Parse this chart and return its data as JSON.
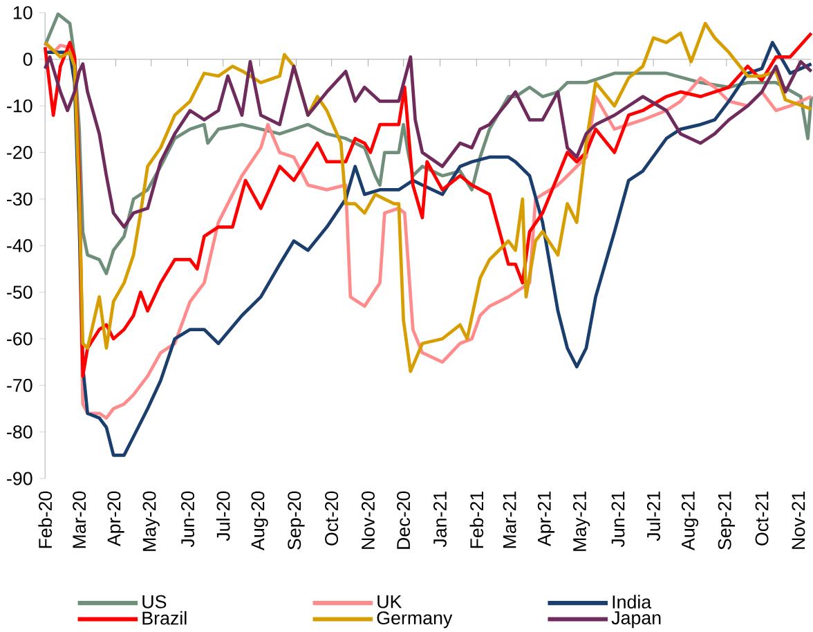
{
  "chart_data": {
    "type": "line",
    "legend": "bottom",
    "line_style": "solid",
    "xlim": [
      "2020-02-01",
      "2021-11-12"
    ],
    "ylim": [
      -90,
      10
    ],
    "yticks": [
      -90,
      -80,
      -70,
      -60,
      -50,
      -40,
      -30,
      -20,
      -10,
      0,
      10
    ],
    "xticks": [
      {
        "value": "2020-02-01",
        "label": "Feb-20"
      },
      {
        "value": "2020-03-01",
        "label": "Mar-20"
      },
      {
        "value": "2020-04-01",
        "label": "Apr-20"
      },
      {
        "value": "2020-05-01",
        "label": "May-20"
      },
      {
        "value": "2020-06-01",
        "label": "Jun-20"
      },
      {
        "value": "2020-07-01",
        "label": "Jul-20"
      },
      {
        "value": "2020-08-01",
        "label": "Aug-20"
      },
      {
        "value": "2020-09-01",
        "label": "Sep-20"
      },
      {
        "value": "2020-10-01",
        "label": "Oct-20"
      },
      {
        "value": "2020-11-01",
        "label": "Nov-20"
      },
      {
        "value": "2020-12-01",
        "label": "Dec-20"
      },
      {
        "value": "2021-01-01",
        "label": "Jan-21"
      },
      {
        "value": "2021-02-01",
        "label": "Feb-21"
      },
      {
        "value": "2021-03-01",
        "label": "Mar-21"
      },
      {
        "value": "2021-04-01",
        "label": "Apr-21"
      },
      {
        "value": "2021-05-01",
        "label": "May-21"
      },
      {
        "value": "2021-06-01",
        "label": "Jun-21"
      },
      {
        "value": "2021-07-01",
        "label": "Jul-21"
      },
      {
        "value": "2021-08-01",
        "label": "Aug-21"
      },
      {
        "value": "2021-09-01",
        "label": "Sep-21"
      },
      {
        "value": "2021-10-01",
        "label": "Oct-21"
      },
      {
        "value": "2021-11-01",
        "label": "Nov-21"
      }
    ],
    "series": [
      {
        "name": "US",
        "color": "#6f8f7b",
        "x": [
          "2020-02-01",
          "2020-02-12",
          "2020-02-22",
          "2020-02-26",
          "2020-03-01",
          "2020-03-04",
          "2020-03-08",
          "2020-03-18",
          "2020-03-24",
          "2020-03-30",
          "2020-04-08",
          "2020-04-16",
          "2020-04-28",
          "2020-05-09",
          "2020-05-21",
          "2020-06-03",
          "2020-06-15",
          "2020-06-18",
          "2020-06-27",
          "2020-07-17",
          "2020-08-02",
          "2020-08-18",
          "2020-09-11",
          "2020-09-27",
          "2020-10-13",
          "2020-10-29",
          "2020-11-07",
          "2020-11-11",
          "2020-11-15",
          "2020-11-27",
          "2020-12-01",
          "2020-12-05",
          "2020-12-09",
          "2020-12-17",
          "2021-01-03",
          "2021-01-18",
          "2021-01-28",
          "2021-02-04",
          "2021-02-12",
          "2021-02-28",
          "2021-03-06",
          "2021-03-18",
          "2021-03-29",
          "2021-04-11",
          "2021-04-19",
          "2021-05-05",
          "2021-05-29",
          "2021-06-22",
          "2021-07-12",
          "2021-08-10",
          "2021-09-03",
          "2021-09-19",
          "2021-10-13",
          "2021-11-03",
          "2021-11-09",
          "2021-11-12"
        ],
        "values": [
          3,
          9.7,
          7.7,
          0.5,
          -15,
          -37,
          -42,
          -43,
          -46,
          -41,
          -38,
          -30,
          -28,
          -23,
          -17,
          -15,
          -14,
          -18,
          -15,
          -14,
          -15,
          -16,
          -14,
          -16,
          -17,
          -19,
          -25,
          -27,
          -20,
          -20,
          -14,
          -20,
          -25,
          -23,
          -25,
          -24,
          -28,
          -21,
          -15,
          -8,
          -8,
          -6,
          -8,
          -7,
          -5,
          -5,
          -3,
          -3,
          -3,
          -5,
          -6,
          -5,
          -5,
          -8,
          -17,
          -8
        ]
      },
      {
        "name": "UK",
        "color": "#ff8c8c",
        "x": [
          "2020-02-01",
          "2020-02-08",
          "2020-02-14",
          "2020-02-22",
          "2020-02-26",
          "2020-03-01",
          "2020-03-04",
          "2020-03-08",
          "2020-03-18",
          "2020-03-24",
          "2020-03-30",
          "2020-04-08",
          "2020-04-16",
          "2020-04-28",
          "2020-05-09",
          "2020-05-21",
          "2020-06-03",
          "2020-06-15",
          "2020-06-27",
          "2020-07-17",
          "2020-08-02",
          "2020-08-08",
          "2020-08-18",
          "2020-08-30",
          "2020-09-11",
          "2020-09-27",
          "2020-10-13",
          "2020-10-17",
          "2020-10-29",
          "2020-11-11",
          "2020-11-15",
          "2020-11-27",
          "2020-12-02",
          "2020-12-09",
          "2020-12-17",
          "2021-01-03",
          "2021-01-18",
          "2021-01-28",
          "2021-02-04",
          "2021-02-12",
          "2021-02-28",
          "2021-03-06",
          "2021-03-18",
          "2021-03-23",
          "2021-03-29",
          "2021-04-11",
          "2021-04-19",
          "2021-04-27",
          "2021-05-05",
          "2021-05-13",
          "2021-05-29",
          "2021-06-10",
          "2021-06-22",
          "2021-07-12",
          "2021-07-24",
          "2021-08-10",
          "2021-08-22",
          "2021-09-03",
          "2021-09-19",
          "2021-10-01",
          "2021-10-13",
          "2021-10-25",
          "2021-11-12"
        ],
        "values": [
          3.6,
          1.5,
          3,
          2.5,
          -1.5,
          -35,
          -74,
          -76,
          -76,
          -77,
          -75,
          -74,
          -72,
          -68,
          -63,
          -61,
          -52,
          -48,
          -35,
          -25,
          -19,
          -14,
          -20,
          -21,
          -27,
          -28,
          -27,
          -51,
          -53,
          -48,
          -33,
          -32,
          -33,
          -58,
          -63,
          -65,
          -61,
          -60,
          -55,
          -53,
          -51,
          -50,
          -48,
          -30,
          -29,
          -27,
          -25,
          -23,
          -21,
          -8,
          -15,
          -14,
          -13,
          -11,
          -9,
          -4,
          -6,
          -9,
          -10,
          -7,
          -11,
          -10,
          -8
        ]
      },
      {
        "name": "India",
        "color": "#1a3e6e",
        "x": [
          "2020-02-01",
          "2020-02-14",
          "2020-02-22",
          "2020-02-26",
          "2020-03-01",
          "2020-03-04",
          "2020-03-08",
          "2020-03-18",
          "2020-03-24",
          "2020-03-30",
          "2020-04-08",
          "2020-04-16",
          "2020-04-28",
          "2020-05-09",
          "2020-05-21",
          "2020-06-03",
          "2020-06-15",
          "2020-06-27",
          "2020-07-17",
          "2020-08-02",
          "2020-08-18",
          "2020-08-30",
          "2020-09-11",
          "2020-09-27",
          "2020-10-13",
          "2020-10-21",
          "2020-10-29",
          "2020-11-11",
          "2020-11-27",
          "2020-12-09",
          "2020-12-17",
          "2021-01-03",
          "2021-01-18",
          "2021-01-28",
          "2021-02-12",
          "2021-02-28",
          "2021-03-06",
          "2021-03-18",
          "2021-03-29",
          "2021-04-11",
          "2021-04-19",
          "2021-04-27",
          "2021-05-05",
          "2021-05-13",
          "2021-05-29",
          "2021-06-10",
          "2021-06-22",
          "2021-07-12",
          "2021-07-24",
          "2021-08-10",
          "2021-08-22",
          "2021-09-03",
          "2021-09-19",
          "2021-10-01",
          "2021-10-10",
          "2021-10-25",
          "2021-11-12"
        ],
        "values": [
          1.5,
          1.5,
          1.5,
          -5,
          -35,
          -66,
          -76,
          -77,
          -79,
          -85,
          -85,
          -81,
          -75,
          -69,
          -60,
          -58,
          -58,
          -61,
          -55,
          -51,
          -44,
          -39,
          -41,
          -36,
          -30,
          -23,
          -29,
          -28,
          -28,
          -26,
          -27,
          -29,
          -23,
          -22,
          -21,
          -21,
          -22,
          -25,
          -35,
          -54,
          -62,
          -66,
          -62,
          -51,
          -37,
          -26,
          -24,
          -17,
          -15,
          -14,
          -13,
          -9,
          -3,
          -2,
          3.6,
          -3,
          -1
        ]
      },
      {
        "name": "Brazil",
        "color": "#ff0000",
        "x": [
          "2020-02-01",
          "2020-02-08",
          "2020-02-14",
          "2020-02-22",
          "2020-02-26",
          "2020-03-01",
          "2020-03-04",
          "2020-03-08",
          "2020-03-18",
          "2020-03-24",
          "2020-03-30",
          "2020-04-08",
          "2020-04-16",
          "2020-04-22",
          "2020-04-28",
          "2020-05-09",
          "2020-05-21",
          "2020-06-03",
          "2020-06-09",
          "2020-06-15",
          "2020-06-27",
          "2020-07-09",
          "2020-07-20",
          "2020-08-02",
          "2020-08-18",
          "2020-08-30",
          "2020-09-19",
          "2020-09-27",
          "2020-10-13",
          "2020-10-21",
          "2020-10-29",
          "2020-11-03",
          "2020-11-11",
          "2020-11-27",
          "2020-12-02",
          "2020-12-09",
          "2020-12-17",
          "2020-12-21",
          "2021-01-03",
          "2021-01-18",
          "2021-01-28",
          "2021-02-12",
          "2021-02-28",
          "2021-03-06",
          "2021-03-12",
          "2021-03-18",
          "2021-03-29",
          "2021-04-11",
          "2021-04-19",
          "2021-04-27",
          "2021-05-05",
          "2021-05-13",
          "2021-05-29",
          "2021-06-10",
          "2021-06-22",
          "2021-07-12",
          "2021-07-24",
          "2021-08-10",
          "2021-08-22",
          "2021-09-03",
          "2021-09-19",
          "2021-10-01",
          "2021-10-13",
          "2021-10-25",
          "2021-11-12"
        ],
        "values": [
          2.6,
          -12,
          -1.5,
          3.6,
          0.5,
          -25,
          -68,
          -62,
          -58,
          -57,
          -60,
          -58,
          -55,
          -50,
          -54,
          -48,
          -43,
          -43,
          -45,
          -38,
          -36,
          -36,
          -26,
          -32,
          -23,
          -26,
          -18,
          -22,
          -22,
          -17,
          -18,
          -20,
          -14,
          -14,
          -6,
          -27,
          -34,
          -22,
          -28,
          -25,
          -27,
          -29,
          -44,
          -44,
          -48,
          -37,
          -33,
          -25,
          -20,
          -22,
          -20,
          -15,
          -20,
          -12,
          -11,
          -8,
          -7,
          -8,
          -7,
          -6,
          -1.5,
          -4.5,
          0.5,
          0.5,
          5.6
        ]
      },
      {
        "name": "Germany",
        "color": "#d69e00",
        "x": [
          "2020-02-01",
          "2020-02-14",
          "2020-02-22",
          "2020-02-26",
          "2020-03-01",
          "2020-03-04",
          "2020-03-08",
          "2020-03-18",
          "2020-03-24",
          "2020-03-30",
          "2020-04-08",
          "2020-04-16",
          "2020-04-22",
          "2020-04-28",
          "2020-05-09",
          "2020-05-21",
          "2020-06-03",
          "2020-06-15",
          "2020-06-27",
          "2020-07-09",
          "2020-07-17",
          "2020-08-02",
          "2020-08-18",
          "2020-08-22",
          "2020-08-30",
          "2020-09-11",
          "2020-09-19",
          "2020-09-27",
          "2020-10-09",
          "2020-10-13",
          "2020-10-21",
          "2020-10-29",
          "2020-11-07",
          "2020-11-23",
          "2020-11-27",
          "2020-12-01",
          "2020-12-07",
          "2020-12-17",
          "2021-01-03",
          "2021-01-18",
          "2021-01-24",
          "2021-02-04",
          "2021-02-12",
          "2021-02-28",
          "2021-03-06",
          "2021-03-12",
          "2021-03-15",
          "2021-03-23",
          "2021-03-29",
          "2021-04-11",
          "2021-04-19",
          "2021-04-27",
          "2021-05-05",
          "2021-05-13",
          "2021-05-29",
          "2021-06-10",
          "2021-06-22",
          "2021-07-01",
          "2021-07-12",
          "2021-07-24",
          "2021-08-02",
          "2021-08-14",
          "2021-08-22",
          "2021-09-03",
          "2021-09-19",
          "2021-10-01",
          "2021-10-13",
          "2021-10-21",
          "2021-11-12"
        ],
        "values": [
          3.6,
          0.5,
          1.5,
          -1.5,
          -30,
          -61,
          -62,
          -51,
          -62,
          -52,
          -48,
          -42,
          -33,
          -23,
          -19,
          -12,
          -9,
          -3,
          -3.6,
          -1.5,
          -2.5,
          -5,
          -3.6,
          1,
          -1.5,
          -12,
          -8,
          -11,
          -18,
          -31,
          -31,
          -33,
          -29,
          -31,
          -31,
          -56,
          -67,
          -61,
          -60,
          -57,
          -60,
          -47,
          -43,
          -39,
          -41,
          -30,
          -51,
          -39,
          -37,
          -42,
          -31,
          -35,
          -18,
          -5,
          -10,
          -4,
          -1.5,
          4.6,
          3.6,
          5.6,
          -0.5,
          7.7,
          4.6,
          1.5,
          -3.6,
          -3.6,
          -2.6,
          -8.7,
          -10.7
        ]
      },
      {
        "name": "Japan",
        "color": "#6e2b5b",
        "x": [
          "2020-02-01",
          "2020-02-05",
          "2020-02-14",
          "2020-02-20",
          "2020-02-26",
          "2020-03-01",
          "2020-03-04",
          "2020-03-08",
          "2020-03-18",
          "2020-03-24",
          "2020-03-30",
          "2020-04-08",
          "2020-04-16",
          "2020-04-28",
          "2020-05-09",
          "2020-05-21",
          "2020-06-03",
          "2020-06-15",
          "2020-06-27",
          "2020-07-05",
          "2020-07-17",
          "2020-07-24",
          "2020-08-02",
          "2020-08-18",
          "2020-08-30",
          "2020-09-11",
          "2020-09-27",
          "2020-10-13",
          "2020-10-21",
          "2020-10-29",
          "2020-11-11",
          "2020-11-27",
          "2020-12-07",
          "2020-12-11",
          "2020-12-17",
          "2021-01-03",
          "2021-01-18",
          "2021-01-28",
          "2021-02-04",
          "2021-02-12",
          "2021-02-28",
          "2021-03-06",
          "2021-03-18",
          "2021-03-29",
          "2021-04-11",
          "2021-04-19",
          "2021-04-27",
          "2021-05-05",
          "2021-05-13",
          "2021-05-29",
          "2021-06-10",
          "2021-06-22",
          "2021-07-12",
          "2021-07-24",
          "2021-08-10",
          "2021-08-22",
          "2021-09-03",
          "2021-09-19",
          "2021-10-01",
          "2021-10-13",
          "2021-10-21",
          "2021-11-03",
          "2021-11-12"
        ],
        "values": [
          -2,
          0.5,
          -7,
          -11,
          -7,
          -2.6,
          -1,
          -7,
          -16,
          -25,
          -33,
          -36,
          -33,
          -32,
          -22,
          -16,
          -11,
          -13,
          -11,
          -3.6,
          -12,
          -0.5,
          -12,
          -14,
          -1.5,
          -12,
          -7,
          -2.6,
          -9,
          -6,
          -9,
          -9,
          0.5,
          -13,
          -20,
          -23,
          -18,
          -19,
          -15,
          -14,
          -9,
          -7,
          -13,
          -13,
          -7,
          -19,
          -21,
          -16,
          -14,
          -12,
          -10,
          -8,
          -11,
          -16,
          -18,
          -16,
          -13,
          -10,
          -7,
          -1.5,
          -7,
          -0.5,
          -2.6
        ]
      }
    ]
  }
}
